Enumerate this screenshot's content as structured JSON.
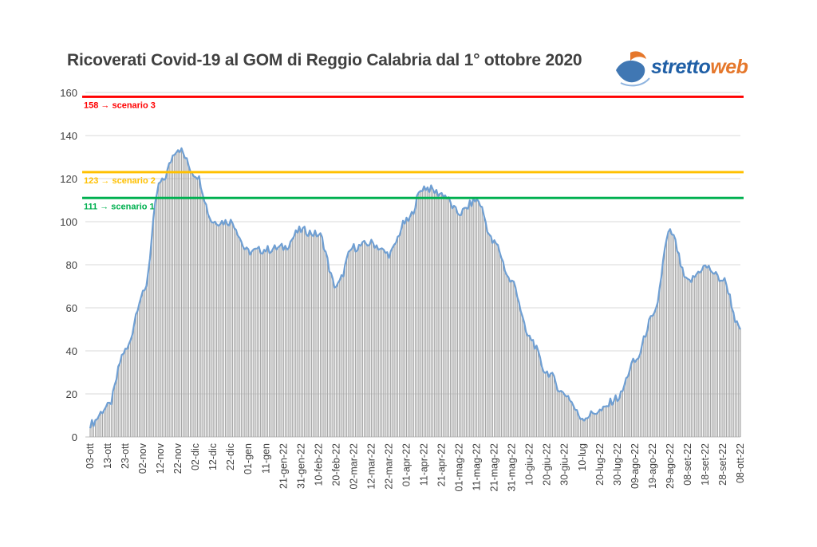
{
  "title": "Ricoverati Covid-19 al GOM di Reggio Calabria dal 1° ottobre 2020",
  "logo": {
    "text_part1": "stretto",
    "text_part2": "web",
    "color_part1": "#1f5fa6",
    "color_part2": "#e5772b"
  },
  "colors": {
    "bars": "#a6a6a6",
    "line": "#6f9fd3",
    "grid": "#d9d9d9",
    "axis_text": "#404040"
  },
  "chart_data": {
    "type": "bar",
    "title": "Ricoverati Covid-19 al GOM di Reggio Calabria dal 1° ottobre 2020",
    "xlabel": "",
    "ylabel": "",
    "ylim": [
      0,
      160
    ],
    "yticks": [
      0,
      20,
      40,
      60,
      80,
      100,
      120,
      140,
      160
    ],
    "grid": true,
    "overlay_line": true,
    "x_tick_labels": [
      "03-ott",
      "13-ott",
      "23-ott",
      "02-nov",
      "12-nov",
      "22-nov",
      "02-dic",
      "12-dic",
      "22-dic",
      "01-gen",
      "11-gen",
      "21-gen-22",
      "31-gen-22",
      "10-feb-22",
      "20-feb-22",
      "02-mar-22",
      "12-mar-22",
      "22-mar-22",
      "01-apr-22",
      "11-apr-22",
      "21-apr-22",
      "01-mag-22",
      "11-mag-22",
      "21-mag-22",
      "31-mag-22",
      "10-giu-22",
      "20-giu-22",
      "30-giu-22",
      "10-lug",
      "20-lug-22",
      "30-lug-22",
      "09-ago-22",
      "19-ago-22",
      "29-ago-22",
      "08-set-22",
      "18-set-22",
      "28-set-22",
      "08-ott-22"
    ],
    "values_at_ticks": [
      6,
      14,
      40,
      66,
      118,
      134,
      122,
      100,
      100,
      86,
      87,
      88,
      96,
      94,
      70,
      88,
      90,
      85,
      100,
      116,
      113,
      104,
      110,
      90,
      72,
      46,
      30,
      20,
      9,
      12,
      18,
      35,
      55,
      95,
      72,
      79,
      73,
      50
    ],
    "reference_lines": [
      {
        "value": 158,
        "label": "158 → scenario 3",
        "color": "#ff0000"
      },
      {
        "value": 123,
        "label": "123 → scenario 2",
        "color": "#ffc000"
      },
      {
        "value": 111,
        "label": "111 → scenario 1",
        "color": "#00b050"
      }
    ]
  }
}
